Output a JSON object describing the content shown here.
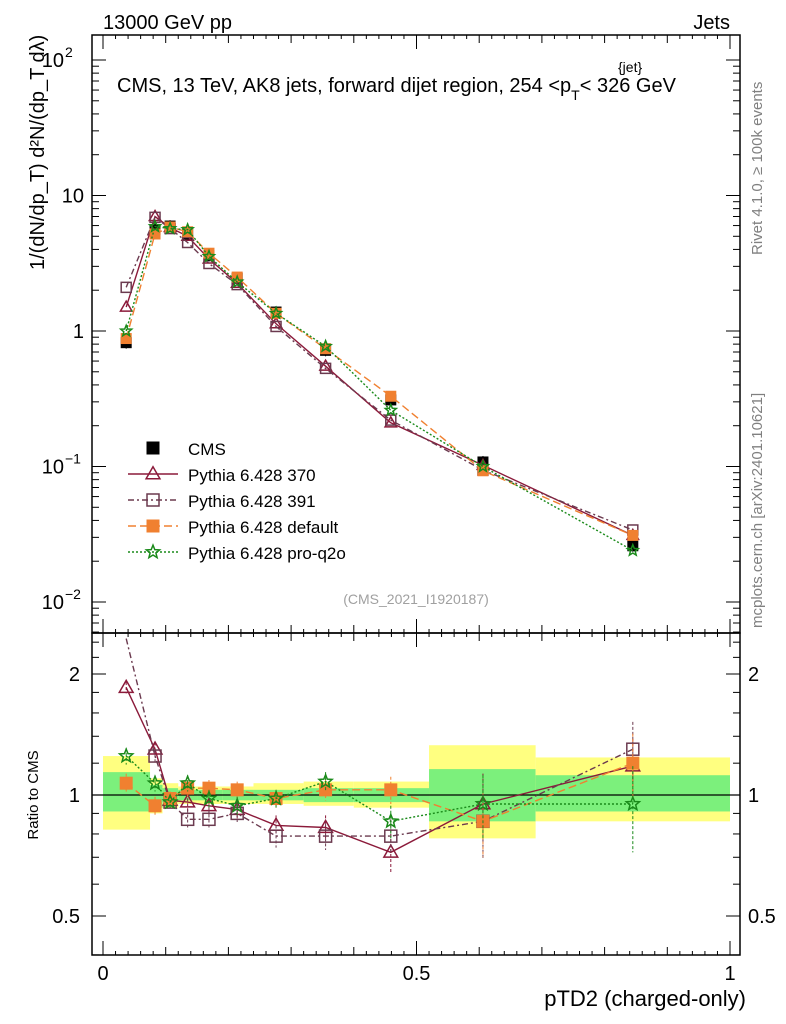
{
  "header": {
    "left": "13000 GeV pp",
    "right": "Jets"
  },
  "side_labels": {
    "rivet": "Rivet 4.1.0, ≥ 100k events",
    "mcplots": "mcplots.cern.ch [arXiv:2401.10621]"
  },
  "chart_data": {
    "type": "line",
    "title": "CMS, 13 TeV, AK8 jets, forward dijet region, 254 <p_T^{jet}< 326 GeV",
    "title_parts": {
      "before": "CMS, 13 TeV, AK8 jets, forward dijet region, 254 <p",
      "sub": "T",
      "sup": "{jet}",
      "after": "< 326 GeV"
    },
    "watermark": "(CMS_2021_I1920187)",
    "xlabel": "pTD2 (charged-only)",
    "ylabel_main": "1/(dN/dp_T) d²N/(dp_T dλ)",
    "ylabel_ratio": "Ratio to CMS",
    "xlim": [
      0,
      1
    ],
    "ylim": [
      0.006,
      160
    ],
    "yscale": "log",
    "ratio_ylim": [
      0.4,
      2.4
    ],
    "x_ticks": [
      "0",
      "0.5",
      "1"
    ],
    "y_tick_labels": {
      "1e-2": "10",
      "1e-2_exp": "−2",
      "1e-1": "10",
      "1e-1_exp": "−1",
      "1": "1",
      "10": "10",
      "100": "10",
      "100_exp": "2"
    },
    "ratio_ticks": [
      "0.5",
      "1",
      "2"
    ],
    "bins": [
      [
        0.0,
        0.075
      ],
      [
        0.075,
        0.095
      ],
      [
        0.095,
        0.12
      ],
      [
        0.12,
        0.15
      ],
      [
        0.15,
        0.19
      ],
      [
        0.19,
        0.24
      ],
      [
        0.24,
        0.32
      ],
      [
        0.32,
        0.4
      ],
      [
        0.4,
        0.52
      ],
      [
        0.52,
        0.69
      ],
      [
        0.69,
        1.0
      ]
    ],
    "x": [
      0.037,
      0.083,
      0.107,
      0.135,
      0.169,
      0.214,
      0.276,
      0.355,
      0.459,
      0.606,
      0.845
    ],
    "band_inner": [
      [
        0.91,
        1.14
      ],
      [
        0.93,
        1.06
      ],
      [
        0.96,
        1.04
      ],
      [
        0.97,
        1.03
      ],
      [
        0.97,
        1.03
      ],
      [
        0.97,
        1.03
      ],
      [
        0.97,
        1.03
      ],
      [
        0.96,
        1.04
      ],
      [
        0.96,
        1.04
      ],
      [
        0.86,
        1.16
      ],
      [
        0.91,
        1.12
      ]
    ],
    "band_outer": [
      [
        0.82,
        1.25
      ],
      [
        0.9,
        1.1
      ],
      [
        0.93,
        1.07
      ],
      [
        0.95,
        1.05
      ],
      [
        0.95,
        1.05
      ],
      [
        0.95,
        1.05
      ],
      [
        0.95,
        1.07
      ],
      [
        0.94,
        1.08
      ],
      [
        0.93,
        1.08
      ],
      [
        0.78,
        1.33
      ],
      [
        0.86,
        1.24
      ]
    ],
    "series": [
      {
        "name": "CMS",
        "values": [
          0.82,
          5.6,
          5.95,
          5.2,
          3.6,
          2.45,
          1.38,
          0.72,
          0.31,
          0.108,
          0.026
        ],
        "color": "#000000",
        "marker": "square-filled",
        "dash": ""
      },
      {
        "name": "Pythia 6.428 370",
        "values": [
          1.5,
          7.0,
          5.8,
          5.0,
          3.4,
          2.25,
          1.13,
          0.55,
          0.21,
          0.102,
          0.031
        ],
        "ratio": [
          1.85,
          1.3,
          0.97,
          0.96,
          0.94,
          0.92,
          0.84,
          0.83,
          0.72,
          0.95,
          1.18
        ],
        "ratio_err": [
          0.06,
          0.05,
          0.04,
          0.05,
          0.05,
          0.05,
          0.05,
          0.06,
          0.08,
          0.18,
          0.2
        ],
        "color": "#8b1a3a",
        "marker": "triangle-open",
        "dash": ""
      },
      {
        "name": "Pythia 6.428 391",
        "values": [
          2.1,
          6.9,
          5.7,
          4.5,
          3.15,
          2.2,
          1.08,
          0.53,
          0.22,
          0.094,
          0.034
        ],
        "ratio": [
          2.6,
          1.25,
          0.96,
          0.87,
          0.87,
          0.9,
          0.79,
          0.79,
          0.79,
          0.86,
          1.3
        ],
        "ratio_err": [
          0.08,
          0.05,
          0.04,
          0.05,
          0.05,
          0.05,
          0.05,
          0.06,
          0.08,
          0.17,
          0.22
        ],
        "color": "#6b3a4f",
        "marker": "square-open",
        "dash": "6,3,2,3"
      },
      {
        "name": "Pythia 6.428 default",
        "values": [
          0.88,
          5.2,
          5.85,
          5.4,
          3.75,
          2.5,
          1.35,
          0.74,
          0.33,
          0.093,
          0.031
        ],
        "ratio": [
          1.07,
          0.94,
          0.98,
          1.04,
          1.04,
          1.03,
          0.98,
          1.03,
          1.03,
          0.86,
          1.2
        ],
        "ratio_err": [
          0.06,
          0.05,
          0.04,
          0.05,
          0.05,
          0.05,
          0.05,
          0.06,
          0.08,
          0.16,
          0.22
        ],
        "color": "#f08030",
        "marker": "square-filled",
        "dash": "8,4"
      },
      {
        "name": "Pythia 6.428 pro-q2o",
        "values": [
          1.0,
          5.9,
          5.7,
          5.6,
          3.55,
          2.3,
          1.35,
          0.77,
          0.26,
          0.1,
          0.024
        ],
        "ratio": [
          1.25,
          1.07,
          0.96,
          1.07,
          0.98,
          0.94,
          0.98,
          1.08,
          0.86,
          0.95,
          0.95
        ],
        "ratio_err": [
          0.06,
          0.05,
          0.04,
          0.05,
          0.05,
          0.05,
          0.05,
          0.06,
          0.08,
          0.17,
          0.23
        ],
        "color": "#1a8a1a",
        "marker": "star",
        "dash": "2,2"
      }
    ],
    "colors": {
      "band_inner": "#7cf07c",
      "band_outer": "#ffff80"
    }
  }
}
